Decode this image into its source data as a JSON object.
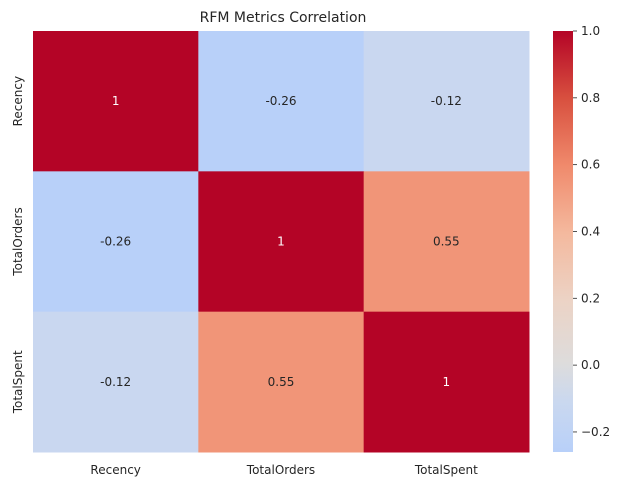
{
  "chart_data": {
    "type": "heatmap",
    "title": "RFM Metrics Correlation",
    "x_labels": [
      "Recency",
      "TotalOrders",
      "TotalSpent"
    ],
    "y_labels": [
      "Recency",
      "TotalOrders",
      "TotalSpent"
    ],
    "values": [
      [
        1,
        -0.26,
        -0.12
      ],
      [
        -0.26,
        1,
        0.55
      ],
      [
        -0.12,
        0.55,
        1
      ]
    ],
    "cell_labels": [
      [
        "1",
        "-0.26",
        "-0.12"
      ],
      [
        "-0.26",
        "1",
        "0.55"
      ],
      [
        "-0.12",
        "0.55",
        "1"
      ]
    ],
    "colormap": "coolwarm",
    "colorbar": {
      "range": [
        -0.26,
        1.0
      ],
      "ticks": [
        -0.2,
        0.0,
        0.2,
        0.4,
        0.6,
        0.8,
        1.0
      ],
      "tick_labels": [
        "−0.2",
        "0.0",
        "0.2",
        "0.4",
        "0.6",
        "0.8",
        "1.0"
      ]
    },
    "colors": {
      "min": "#b8d0f9",
      "low": "#cfdaec",
      "mid": "#dddcdc",
      "high": "#f08a6c",
      "max": "#b40426"
    },
    "grid": false,
    "legend": "colorbar-right"
  }
}
